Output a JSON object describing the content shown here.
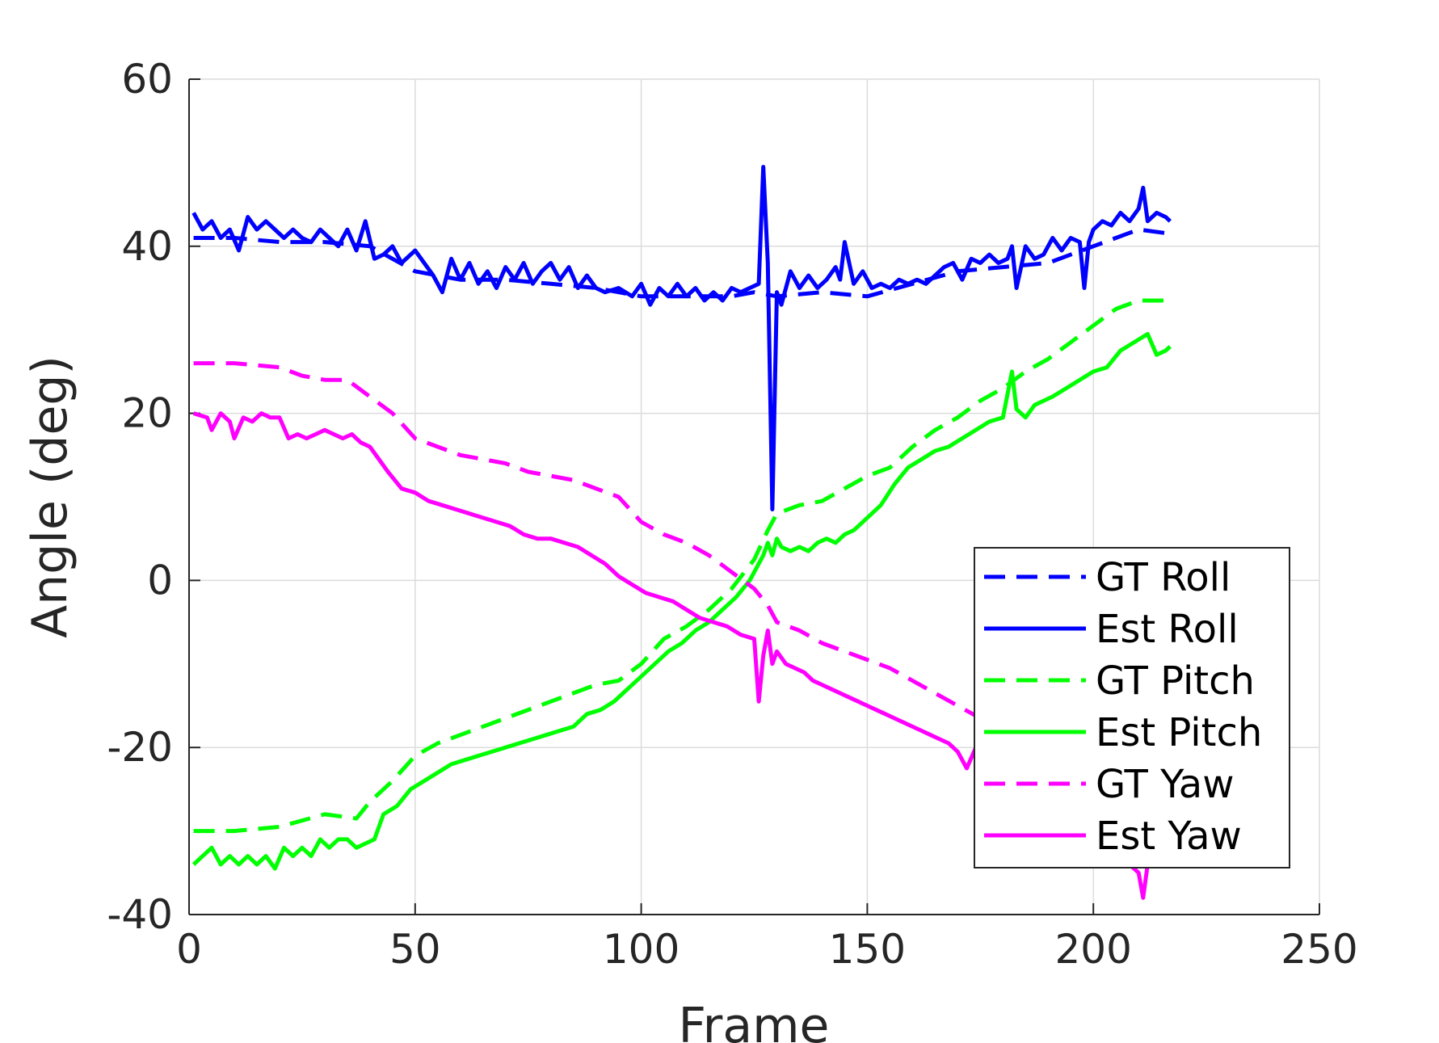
{
  "chart_data": {
    "type": "line",
    "title": "",
    "xlabel": "Frame",
    "ylabel": "Angle (deg)",
    "xlim": [
      0,
      250
    ],
    "ylim": [
      -40,
      60
    ],
    "xticks": [
      0,
      50,
      100,
      150,
      200,
      250
    ],
    "yticks": [
      -40,
      -20,
      0,
      20,
      40,
      60
    ],
    "xtick_labels": [
      "0",
      "50",
      "100",
      "150",
      "200",
      "250"
    ],
    "ytick_labels": [
      "-40",
      "-20",
      "0",
      "20",
      "40",
      "60"
    ],
    "grid": true,
    "legend_position": "bottom-right",
    "series": [
      {
        "name": "GT Roll",
        "color": "#0000ff",
        "style": "dashed",
        "x": [
          1,
          10,
          20,
          30,
          40,
          50,
          60,
          70,
          80,
          90,
          100,
          110,
          120,
          125,
          130,
          140,
          150,
          160,
          170,
          180,
          190,
          200,
          210,
          217
        ],
        "y": [
          41,
          41,
          40.5,
          40.5,
          40,
          37,
          36,
          36,
          35.5,
          35,
          34,
          34,
          34,
          34.5,
          34,
          34.5,
          34,
          35.5,
          37,
          37.5,
          38,
          40,
          42,
          41.5
        ]
      },
      {
        "name": "Est Roll",
        "color": "#0000ff",
        "style": "solid",
        "x": [
          1,
          3,
          5,
          7,
          9,
          11,
          13,
          15,
          17,
          19,
          21,
          23,
          25,
          27,
          29,
          31,
          33,
          35,
          37,
          39,
          41,
          43,
          45,
          47,
          50,
          52,
          54,
          56,
          58,
          60,
          62,
          64,
          66,
          68,
          70,
          72,
          74,
          76,
          78,
          80,
          82,
          84,
          86,
          88,
          90,
          92,
          95,
          98,
          100,
          102,
          104,
          106,
          108,
          110,
          112,
          114,
          116,
          118,
          120,
          122,
          124,
          126,
          127,
          128,
          129,
          130,
          131,
          133,
          135,
          137,
          139,
          141,
          143,
          144,
          145,
          147,
          149,
          151,
          153,
          155,
          157,
          159,
          161,
          163,
          165,
          167,
          169,
          171,
          173,
          175,
          177,
          179,
          181,
          182,
          183,
          185,
          187,
          189,
          191,
          193,
          195,
          197,
          198,
          199,
          200,
          202,
          204,
          206,
          208,
          210,
          211,
          212,
          214,
          216,
          217
        ],
        "y": [
          44,
          42,
          43,
          41,
          42,
          39.5,
          43.5,
          42,
          43,
          42,
          41,
          42,
          41,
          40.5,
          42,
          41,
          40,
          42,
          39.5,
          43,
          38.5,
          39,
          40,
          38,
          39.5,
          38,
          36.5,
          34.5,
          38.5,
          36,
          38,
          35.5,
          37,
          35,
          37.5,
          36,
          38,
          35.5,
          37,
          38,
          36,
          37.5,
          35,
          36.5,
          35,
          34.5,
          35,
          34,
          35.5,
          33,
          35,
          34,
          35.5,
          34,
          35,
          33.5,
          34.5,
          33.5,
          35,
          34.5,
          35,
          35.5,
          49.5,
          38,
          8.5,
          34.5,
          33,
          37,
          35,
          36.5,
          35,
          36,
          37.5,
          36,
          40.5,
          35.5,
          37,
          35,
          35.5,
          35,
          36,
          35.5,
          36,
          35.5,
          36.5,
          37.5,
          38,
          36,
          38.5,
          38,
          39,
          38,
          38.5,
          40,
          35,
          40,
          38.5,
          39,
          41,
          39.5,
          41,
          40.5,
          35,
          40.5,
          42,
          43,
          42.5,
          44,
          43,
          44.5,
          47,
          43,
          44,
          43.5,
          43
        ]
      },
      {
        "name": "GT Pitch",
        "color": "#00ff00",
        "style": "dashed",
        "x": [
          1,
          10,
          20,
          30,
          37,
          40,
          45,
          50,
          55,
          60,
          70,
          80,
          90,
          95,
          100,
          105,
          110,
          115,
          120,
          125,
          128,
          130,
          135,
          140,
          150,
          155,
          160,
          165,
          170,
          175,
          180,
          185,
          190,
          195,
          200,
          205,
          210,
          217
        ],
        "y": [
          -30,
          -30,
          -29.5,
          -28,
          -28.5,
          -26.5,
          -24,
          -21,
          -19.5,
          -18.5,
          -16.5,
          -14.5,
          -12.5,
          -12,
          -10,
          -7,
          -5.5,
          -3.5,
          -1,
          2.5,
          6,
          8,
          9,
          9.5,
          12.5,
          13.5,
          16,
          18,
          19.5,
          21.5,
          23,
          25,
          26.5,
          28.5,
          30.5,
          32.5,
          33.5,
          33.5
        ]
      },
      {
        "name": "Est Pitch",
        "color": "#00ff00",
        "style": "solid",
        "x": [
          1,
          5,
          7,
          9,
          11,
          13,
          15,
          17,
          19,
          21,
          23,
          25,
          27,
          29,
          31,
          33,
          35,
          37,
          39,
          41,
          43,
          46,
          49,
          52,
          55,
          58,
          61,
          64,
          67,
          70,
          73,
          76,
          79,
          82,
          85,
          88,
          91,
          94,
          97,
          100,
          103,
          106,
          109,
          112,
          115,
          118,
          121,
          124,
          126,
          127,
          128,
          129,
          130,
          131,
          133,
          135,
          137,
          139,
          141,
          143,
          145,
          147,
          150,
          153,
          156,
          159,
          162,
          165,
          168,
          171,
          174,
          177,
          180,
          182,
          183,
          185,
          187,
          189,
          191,
          194,
          197,
          200,
          203,
          206,
          209,
          212,
          214,
          216,
          217
        ],
        "y": [
          -34,
          -32,
          -34,
          -33,
          -34,
          -33,
          -34,
          -33,
          -34.5,
          -32,
          -33,
          -32,
          -33,
          -31,
          -32,
          -31,
          -31,
          -32,
          -31.5,
          -31,
          -28,
          -27,
          -25,
          -24,
          -23,
          -22,
          -21.5,
          -21,
          -20.5,
          -20,
          -19.5,
          -19,
          -18.5,
          -18,
          -17.5,
          -16,
          -15.5,
          -14.5,
          -13,
          -11.5,
          -10,
          -8.5,
          -7.5,
          -6,
          -5,
          -3.5,
          -2,
          0,
          2,
          3,
          4.5,
          3,
          5,
          4,
          3.5,
          4,
          3.5,
          4.5,
          5,
          4.5,
          5.5,
          6,
          7.5,
          9,
          11.5,
          13.5,
          14.5,
          15.5,
          16,
          17,
          18,
          19,
          19.5,
          25,
          20.5,
          19.5,
          21,
          21.5,
          22,
          23,
          24,
          25,
          25.5,
          27.5,
          28.5,
          29.5,
          27,
          27.5,
          28
        ]
      },
      {
        "name": "GT Yaw",
        "color": "#ff00ff",
        "style": "dashed",
        "x": [
          1,
          10,
          20,
          25,
          30,
          35,
          40,
          45,
          50,
          55,
          60,
          65,
          70,
          75,
          80,
          85,
          90,
          95,
          100,
          105,
          110,
          115,
          120,
          125,
          128,
          130,
          135,
          140,
          145,
          150,
          155,
          160,
          165,
          170,
          175,
          180,
          185,
          190,
          195,
          200,
          205,
          210,
          217
        ],
        "y": [
          26,
          26,
          25.5,
          24.5,
          24,
          24,
          22,
          20,
          17,
          16,
          15,
          14.5,
          14,
          13,
          12.5,
          12,
          11,
          10,
          7,
          5.5,
          4.5,
          3,
          1,
          -1,
          -3,
          -5,
          -6,
          -7.5,
          -8.5,
          -9.5,
          -10.5,
          -12,
          -13.5,
          -15,
          -16.5,
          -18.5,
          -20.5,
          -22.5,
          -24.5,
          -26.5,
          -28.5,
          -30.5,
          -31.5
        ]
      },
      {
        "name": "Est Yaw",
        "color": "#ff00ff",
        "style": "solid",
        "x": [
          1,
          4,
          5,
          7,
          9,
          10,
          12,
          14,
          16,
          18,
          20,
          22,
          24,
          26,
          28,
          30,
          32,
          34,
          36,
          38,
          40,
          42,
          44,
          47,
          50,
          53,
          56,
          59,
          62,
          65,
          68,
          71,
          74,
          77,
          80,
          83,
          86,
          89,
          92,
          95,
          98,
          101,
          104,
          107,
          110,
          113,
          116,
          119,
          122,
          125,
          126,
          127,
          128,
          129,
          130,
          132,
          134,
          136,
          138,
          140,
          142,
          144,
          146,
          148,
          150,
          152,
          154,
          156,
          158,
          160,
          162,
          164,
          166,
          168,
          170,
          172,
          174,
          176,
          178,
          180,
          185,
          190,
          195,
          200,
          205,
          208,
          210,
          211,
          212,
          213
        ],
        "y": [
          20,
          19.5,
          18,
          20,
          19,
          17,
          19.5,
          19,
          20,
          19.5,
          19.5,
          17,
          17.5,
          17,
          17.5,
          18,
          17.5,
          17,
          17.5,
          16.5,
          16,
          14.5,
          13,
          11,
          10.5,
          9.5,
          9,
          8.5,
          8,
          7.5,
          7,
          6.5,
          5.5,
          5,
          5,
          4.5,
          4,
          3,
          2,
          0.5,
          -0.5,
          -1.5,
          -2,
          -2.5,
          -3.5,
          -4.5,
          -5,
          -5.5,
          -6.5,
          -7,
          -14.5,
          -9,
          -6,
          -10,
          -8.5,
          -10,
          -10.5,
          -11,
          -12,
          -12.5,
          -13,
          -13.5,
          -14,
          -14.5,
          -15,
          -15.5,
          -16,
          -16.5,
          -17,
          -17.5,
          -18,
          -18.5,
          -19,
          -19.5,
          -20.5,
          -22.5,
          -20,
          -21.5,
          -22,
          -23,
          -25,
          -27,
          -29,
          -31,
          -33,
          -34,
          -35,
          -38,
          -34,
          -33.5
        ]
      }
    ]
  }
}
